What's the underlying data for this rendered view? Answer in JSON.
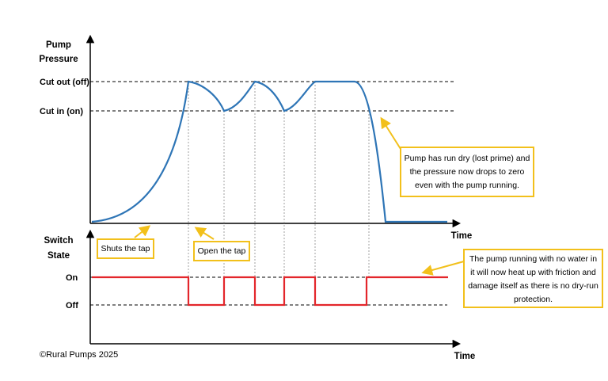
{
  "top_chart": {
    "y_title_line1": "Pump",
    "y_title_line2": "Pressure",
    "x_title": "Time",
    "levels": [
      "Cut out (off)",
      "Cut in (on)"
    ]
  },
  "bottom_chart": {
    "y_title_line1": "Switch",
    "y_title_line2": "State",
    "x_title": "Time",
    "levels": [
      "On",
      "Off"
    ]
  },
  "annotations": {
    "shuts_tap": "Shuts the tap",
    "open_tap": "Open the tap",
    "dry_run_lines": [
      "Pump has run dry (lost prime) and",
      "the pressure now drops to zero",
      "even with the pump running."
    ],
    "heat_lines": [
      "The pump running with no water in",
      "it will now heat up with friction and",
      "damage itself as there is no dry-run",
      "protection."
    ]
  },
  "copyright": "©Rural Pumps 2025",
  "colors": {
    "pressure_curve": "#2e75b6",
    "switch_line": "#e3262b",
    "callout_border": "#f2c01b",
    "axis": "#000000"
  }
}
